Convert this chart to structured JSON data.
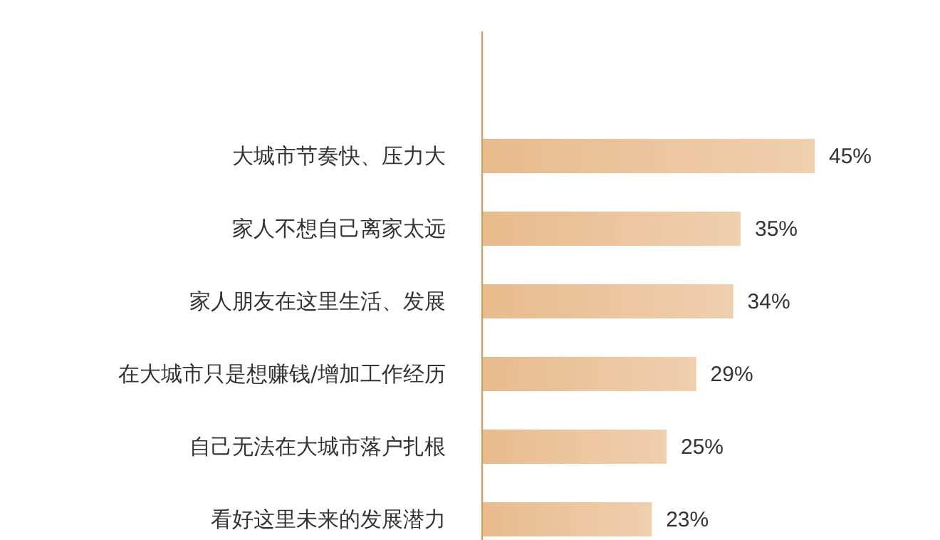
{
  "chart_data": {
    "type": "bar",
    "orientation": "horizontal",
    "categories": [
      "大城市节奏快、压力大",
      "家人不想自己离家太远",
      "家人朋友在这里生活、发展",
      "在大城市只是想赚钱/增加工作经历",
      "自己无法在大城市落户扎根",
      "看好这里未来的发展潜力"
    ],
    "values": [
      45,
      35,
      34,
      29,
      25,
      23
    ],
    "value_labels": [
      "45%",
      "35%",
      "34%",
      "29%",
      "25%",
      "23%"
    ],
    "color": "#e8bb8c"
  }
}
